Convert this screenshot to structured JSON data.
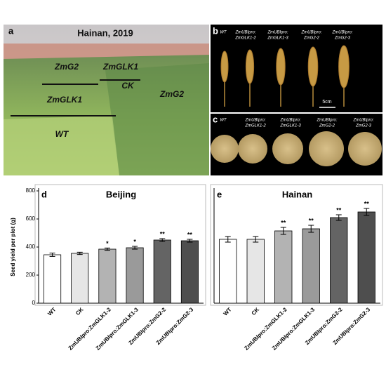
{
  "panels": {
    "a": {
      "letter": "a",
      "title": "Hainan, 2019",
      "labels": [
        "ZmG2",
        "ZmGLK1",
        "CK",
        "ZmGLK1",
        "ZmG2",
        "WT"
      ]
    },
    "b": {
      "letter": "b",
      "labels": [
        [
          "WT"
        ],
        [
          "ZmUBIpro:",
          "ZmGLK1-2"
        ],
        [
          "ZmUBIpro:",
          "ZmGLK1-3"
        ],
        [
          "ZmUBIpro:",
          "ZmG2-2"
        ],
        [
          "ZmUBIpro:",
          "ZmG2-3"
        ]
      ],
      "scale": "5cm"
    },
    "c": {
      "letter": "c",
      "labels": [
        [
          "WT"
        ],
        [
          "ZmUBIpro:",
          "ZmGLK1-2"
        ],
        [
          "ZmUBIpro:",
          "ZmGLK1-3"
        ],
        [
          "ZmUBIpro:",
          "ZmG2-2"
        ],
        [
          "ZmUBIpro:",
          "ZmG2-3"
        ]
      ]
    }
  },
  "chart_data": [
    {
      "type": "bar",
      "letter": "d",
      "title": "Beijing",
      "y_label": "Seed yield per plot (g)",
      "categories": [
        "WT",
        "CK",
        "ZmUBIpro:ZmGLK1-2",
        "ZmUBIpro:ZmGLK1-3",
        "ZmUBIpro:ZmG2-2",
        "ZmUBIpro:ZmG2-3"
      ],
      "values": [
        345,
        355,
        385,
        395,
        450,
        445
      ],
      "errors": [
        12,
        8,
        8,
        10,
        10,
        10
      ],
      "significance": [
        null,
        null,
        "*",
        "*",
        "**",
        "**"
      ],
      "colors": [
        "#ffffff",
        "#e6e6e6",
        "#b3b3b3",
        "#9a9a9a",
        "#646464",
        "#4e4e4e"
      ],
      "ylim": [
        0,
        800
      ],
      "yticks": [
        0,
        200,
        400,
        600,
        800
      ]
    },
    {
      "type": "bar",
      "letter": "e",
      "title": "Hainan",
      "categories": [
        "WT",
        "CK",
        "ZmUBIpro:ZmGLK1-2",
        "ZmUBIpro:ZmGLK1-3",
        "ZmUBIpro:ZmG2-2",
        "ZmUBIpro:ZmG2-3"
      ],
      "values": [
        455,
        455,
        515,
        530,
        610,
        650
      ],
      "errors": [
        20,
        20,
        25,
        25,
        20,
        25
      ],
      "significance": [
        null,
        null,
        "**",
        "**",
        "**",
        "**"
      ],
      "colors": [
        "#ffffff",
        "#e6e6e6",
        "#b3b3b3",
        "#9a9a9a",
        "#646464",
        "#4e4e4e"
      ],
      "ylim": [
        0,
        800
      ]
    }
  ]
}
